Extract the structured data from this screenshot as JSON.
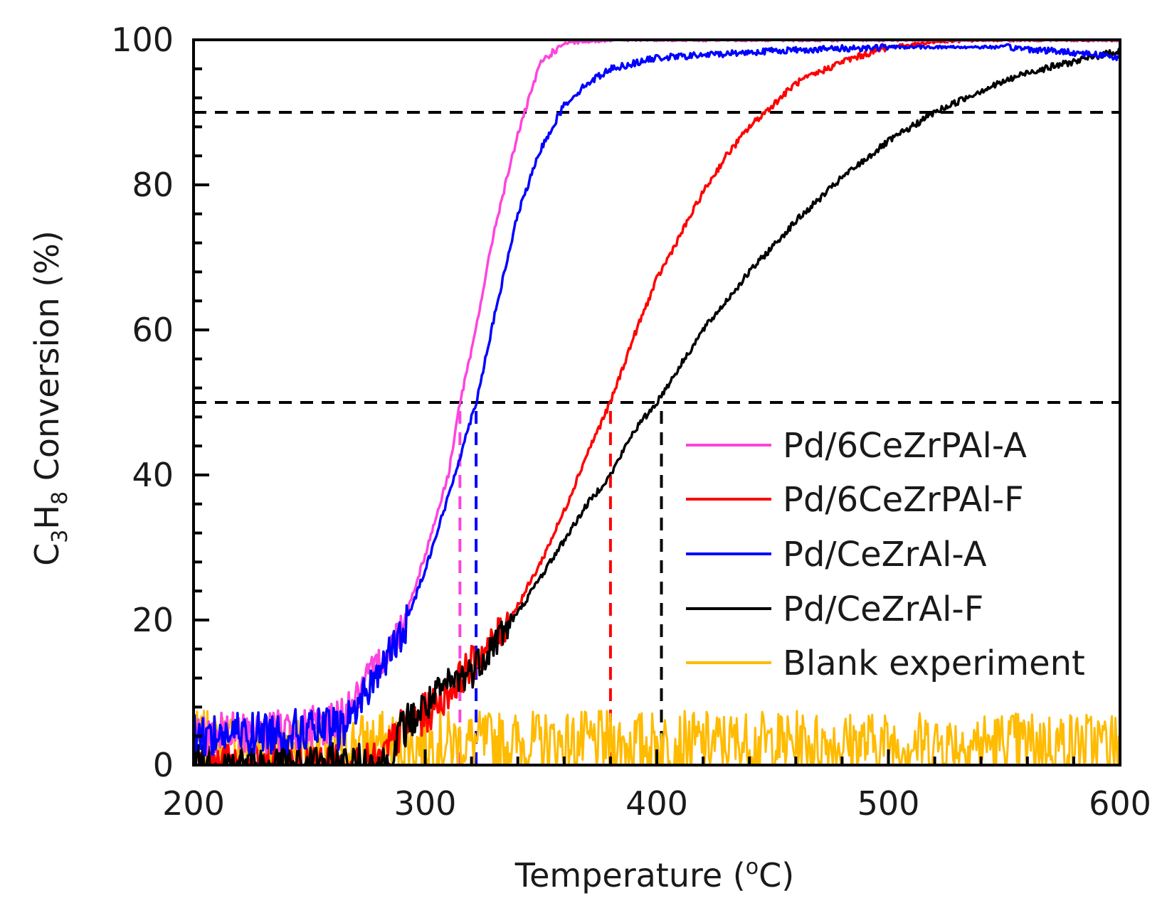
{
  "chart_data": {
    "type": "line",
    "title": "",
    "xlabel": "Temperature (",
    "xlabel_sup": "o",
    "xlabel_unit": "C)",
    "ylabel_prefix": "C",
    "ylabel_sub1": "3",
    "ylabel_mid": "H",
    "ylabel_sub2": "8",
    "ylabel_suffix": " Conversion (%)",
    "xlim": [
      200,
      600
    ],
    "ylim": [
      0,
      100
    ],
    "xticks": [
      200,
      300,
      400,
      500,
      600
    ],
    "yticks": [
      0,
      20,
      40,
      60,
      80,
      100
    ],
    "x_minor_step": 20,
    "y_minor_step": 4,
    "legend_position": "bottom-right",
    "reference_lines": [
      {
        "type": "horizontal",
        "y": 90,
        "color": "#000000"
      },
      {
        "type": "horizontal",
        "y": 50,
        "color": "#000000"
      },
      {
        "type": "vertical",
        "x": 315,
        "y_max": 50,
        "color": "#ff44dd"
      },
      {
        "type": "vertical",
        "x": 322,
        "y_max": 50,
        "color": "#0000ff"
      },
      {
        "type": "vertical",
        "x": 380,
        "y_max": 50,
        "color": "#ff0000"
      },
      {
        "type": "vertical",
        "x": 402,
        "y_max": 50,
        "color": "#000000"
      }
    ],
    "series": [
      {
        "name": "Pd/6CeZrPAl-A",
        "color": "#ff44dd",
        "x": [
          200,
          250,
          260,
          270,
          280,
          290,
          300,
          310,
          315,
          320,
          330,
          340,
          350,
          360,
          380,
          400,
          600
        ],
        "y": [
          4,
          5,
          6,
          9,
          14,
          19,
          29,
          40,
          50,
          57,
          74,
          87,
          97,
          99.5,
          100,
          100,
          100
        ]
      },
      {
        "name": "Pd/6CeZrPAl-F",
        "color": "#ff0000",
        "x": [
          200,
          280,
          290,
          300,
          310,
          320,
          330,
          340,
          350,
          360,
          370,
          380,
          390,
          400,
          410,
          420,
          430,
          440,
          450,
          460,
          480,
          500,
          520,
          540,
          600
        ],
        "y": [
          0,
          0,
          5,
          7,
          10,
          14,
          17,
          22,
          28,
          35,
          43,
          50,
          59,
          67,
          73,
          79,
          84,
          88,
          91,
          94,
          97,
          99,
          99.7,
          100,
          100
        ]
      },
      {
        "name": "Pd/CeZrAl-A",
        "color": "#0000ff",
        "x": [
          200,
          260,
          265,
          270,
          280,
          290,
          300,
          310,
          320,
          322,
          330,
          340,
          350,
          360,
          370,
          380,
          400,
          450,
          500,
          550,
          570,
          590,
          600
        ],
        "y": [
          4,
          5,
          5,
          8,
          13,
          18,
          27,
          37,
          48,
          50,
          62,
          76,
          85,
          91,
          94,
          96,
          97.5,
          98.5,
          99,
          99,
          98.5,
          98,
          97.5
        ]
      },
      {
        "name": "Pd/CeZrAl-F",
        "color": "#000000",
        "x": [
          200,
          285,
          290,
          300,
          310,
          320,
          330,
          340,
          350,
          360,
          370,
          380,
          390,
          400,
          410,
          420,
          440,
          460,
          480,
          500,
          520,
          540,
          560,
          580,
          600
        ],
        "y": [
          0,
          0,
          5,
          8,
          11,
          13,
          17,
          21,
          26,
          31,
          36,
          40,
          46,
          50,
          55,
          60,
          68,
          75,
          81,
          86,
          90,
          93,
          95.5,
          97,
          98.5
        ]
      },
      {
        "name": "Blank experiment",
        "color": "#ffbb00",
        "x": [
          200,
          600
        ],
        "y": [
          3,
          3
        ]
      }
    ]
  }
}
